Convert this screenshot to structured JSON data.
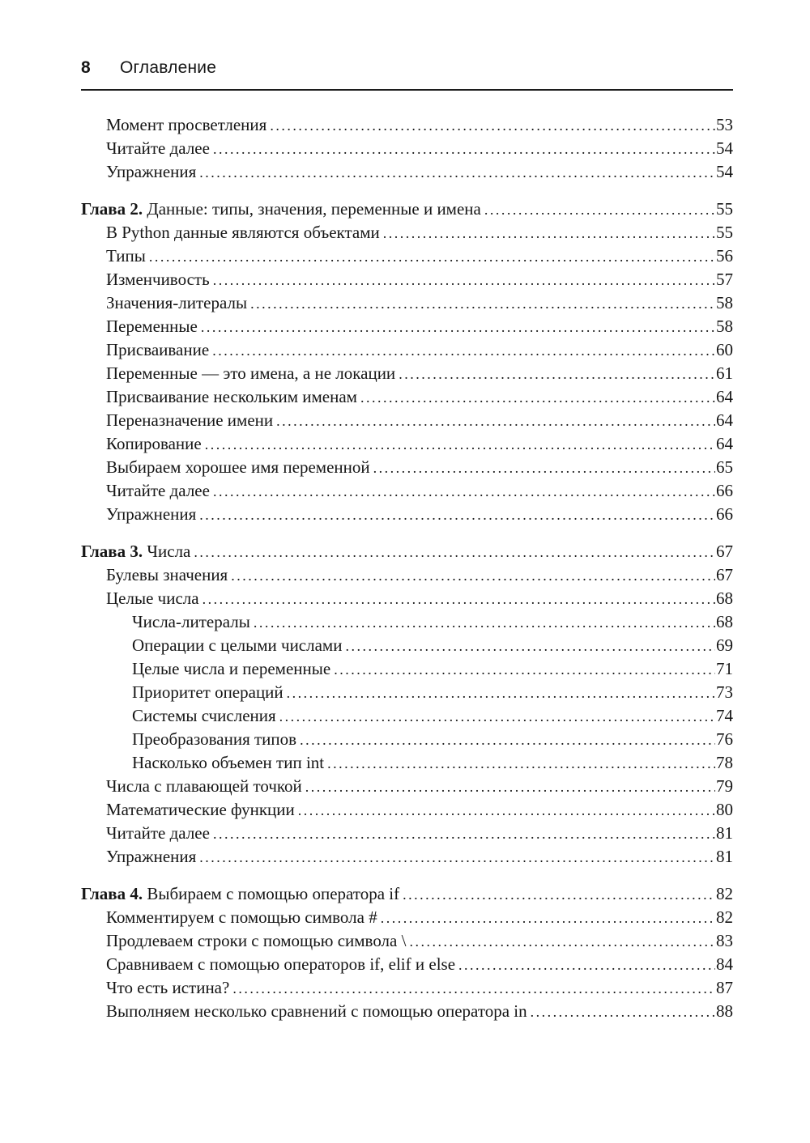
{
  "colors": {
    "text": "#161616",
    "background": "#ffffff",
    "rule": "#1c1c1c"
  },
  "header": {
    "page_number": "8",
    "title": "Оглавление"
  },
  "toc": {
    "entries": [
      {
        "level": 1,
        "prefix": "",
        "text": "Момент просветления",
        "page": "53"
      },
      {
        "level": 1,
        "prefix": "",
        "text": "Читайте далее",
        "page": "54"
      },
      {
        "level": 1,
        "prefix": "",
        "text": "Упражнения",
        "page": "54"
      },
      {
        "level": 0,
        "prefix": "Глава 2.",
        "text": "Данные: типы, значения, переменные и имена",
        "page": "55"
      },
      {
        "level": 1,
        "prefix": "",
        "text": "В Python данные являются объектами",
        "page": "55"
      },
      {
        "level": 1,
        "prefix": "",
        "text": "Типы",
        "page": "56"
      },
      {
        "level": 1,
        "prefix": "",
        "text": "Изменчивость",
        "page": "57"
      },
      {
        "level": 1,
        "prefix": "",
        "text": "Значения-литералы",
        "page": "58"
      },
      {
        "level": 1,
        "prefix": "",
        "text": "Переменные",
        "page": "58"
      },
      {
        "level": 1,
        "prefix": "",
        "text": "Присваивание",
        "page": "60"
      },
      {
        "level": 1,
        "prefix": "",
        "text": "Переменные — это имена, а не локации",
        "page": "61"
      },
      {
        "level": 1,
        "prefix": "",
        "text": "Присваивание нескольким именам",
        "page": "64"
      },
      {
        "level": 1,
        "prefix": "",
        "text": "Переназначение имени",
        "page": "64"
      },
      {
        "level": 1,
        "prefix": "",
        "text": "Копирование",
        "page": "64"
      },
      {
        "level": 1,
        "prefix": "",
        "text": "Выбираем хорошее имя переменной",
        "page": "65"
      },
      {
        "level": 1,
        "prefix": "",
        "text": "Читайте далее",
        "page": "66"
      },
      {
        "level": 1,
        "prefix": "",
        "text": "Упражнения",
        "page": "66"
      },
      {
        "level": 0,
        "prefix": "Глава 3.",
        "text": "Числа",
        "page": "67"
      },
      {
        "level": 1,
        "prefix": "",
        "text": "Булевы значения",
        "page": "67"
      },
      {
        "level": 1,
        "prefix": "",
        "text": "Целые числа",
        "page": "68"
      },
      {
        "level": 2,
        "prefix": "",
        "text": "Числа-литералы",
        "page": "68"
      },
      {
        "level": 2,
        "prefix": "",
        "text": "Операции с целыми числами",
        "page": "69"
      },
      {
        "level": 2,
        "prefix": "",
        "text": "Целые числа и переменные",
        "page": "71"
      },
      {
        "level": 2,
        "prefix": "",
        "text": "Приоритет операций",
        "page": "73"
      },
      {
        "level": 2,
        "prefix": "",
        "text": "Системы счисления",
        "page": "74"
      },
      {
        "level": 2,
        "prefix": "",
        "text": "Преобразования типов",
        "page": "76"
      },
      {
        "level": 2,
        "prefix": "",
        "text": "Насколько объемен тип int",
        "page": "78"
      },
      {
        "level": 1,
        "prefix": "",
        "text": "Числа с плавающей точкой",
        "page": "79"
      },
      {
        "level": 1,
        "prefix": "",
        "text": "Математические функции",
        "page": "80"
      },
      {
        "level": 1,
        "prefix": "",
        "text": "Читайте далее",
        "page": "81"
      },
      {
        "level": 1,
        "prefix": "",
        "text": "Упражнения",
        "page": "81"
      },
      {
        "level": 0,
        "prefix": "Глава 4.",
        "text": "Выбираем с помощью оператора if",
        "page": "82"
      },
      {
        "level": 1,
        "prefix": "",
        "text": "Комментируем с помощью символа #",
        "page": "82"
      },
      {
        "level": 1,
        "prefix": "",
        "text": "Продлеваем строки с помощью символа \\",
        "page": "83"
      },
      {
        "level": 1,
        "prefix": "",
        "text": "Сравниваем с помощью операторов if, elif и else",
        "page": "84"
      },
      {
        "level": 1,
        "prefix": "",
        "text": "Что есть истина?",
        "page": "87"
      },
      {
        "level": 1,
        "prefix": "",
        "text": "Выполняем несколько сравнений с помощью оператора in",
        "page": "88"
      }
    ]
  }
}
